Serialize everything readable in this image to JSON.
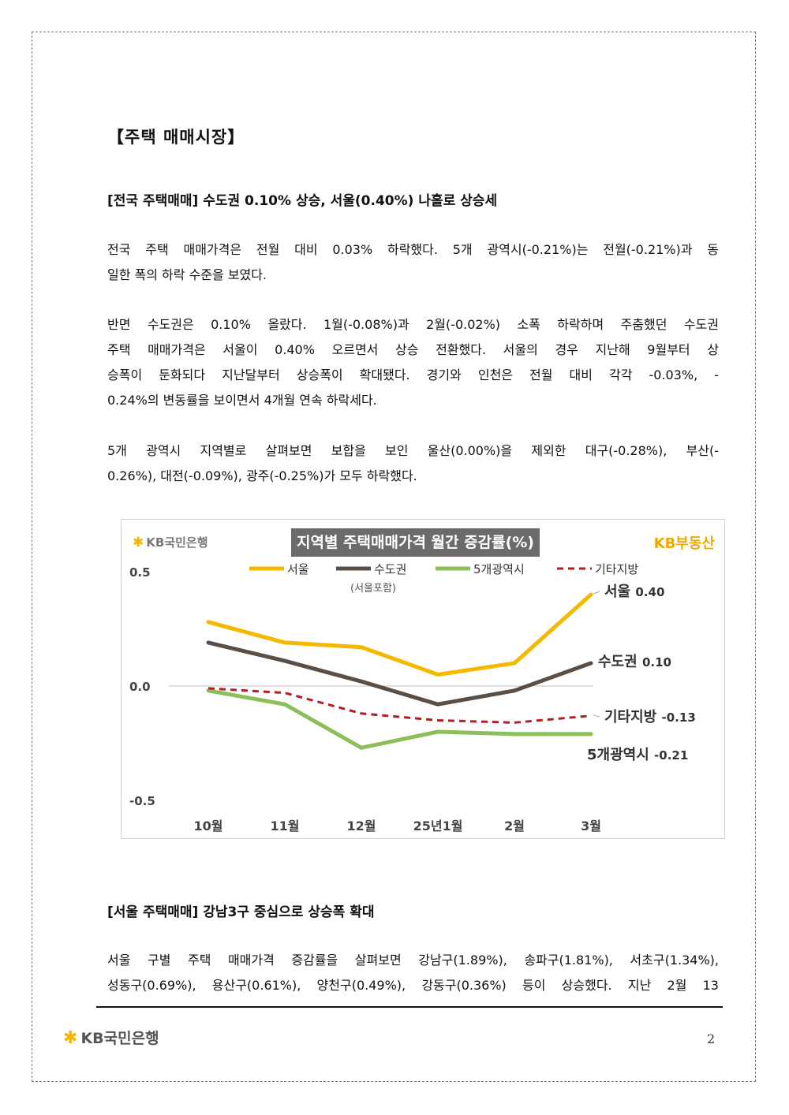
{
  "section_title": "【주택 매매시장】",
  "heading1": "[전국 주택매매] 수도권 0.10% 상승, 서울(0.40%) 나홀로 상승세",
  "para1": [
    "전국 주택 매매가격은 전월 대비 0.03% 하락했다. 5개 광역시(-0.21%)는 전월(-0.21%)과 동",
    "일한 폭의 하락 수준을 보였다."
  ],
  "para2": [
    "반면 수도권은 0.10% 올랐다. 1월(-0.08%)과 2월(-0.02%) 소폭 하락하며 주춤했던 수도권",
    "주택 매매가격은 서울이 0.40% 오르면서 상승 전환했다. 서울의 경우 지난해 9월부터 상",
    "승폭이 둔화되다 지난달부터 상승폭이 확대됐다. 경기와 인천은 전월 대비 각각 -0.03%, -",
    "0.24%의 변동률을 보이면서 4개월 연속 하락세다."
  ],
  "para3": [
    "5개 광역시 지역별로 살펴보면 보합을 보인 울산(0.00%)을 제외한 대구(-0.28%), 부산(-",
    "0.26%), 대전(-0.09%), 광주(-0.25%)가 모두 하락했다."
  ],
  "chart_logo_left": "KB국민은행",
  "chart_logo_right": "KB부동산",
  "chart_data": {
    "type": "line",
    "title": "지역별 주택매매가격 월간 증감률(%)",
    "categories": [
      "10월",
      "11월",
      "12월",
      "25년1월",
      "2월",
      "3월"
    ],
    "ylim": [
      -0.5,
      0.5
    ],
    "yticks": [
      "0.5",
      "0.0",
      "-0.5"
    ],
    "legend_note": "(서울포함)",
    "series": [
      {
        "name": "서울",
        "color": "#f5b800",
        "dashed": false,
        "values": [
          0.28,
          0.19,
          0.17,
          0.05,
          0.1,
          0.4
        ],
        "end_label": "서울",
        "end_value": "0.40"
      },
      {
        "name": "수도권",
        "color": "#5a4f47",
        "dashed": false,
        "values": [
          0.19,
          0.11,
          0.02,
          -0.08,
          -0.02,
          0.1
        ],
        "end_label": "수도권",
        "end_value": "0.10"
      },
      {
        "name": "5개광역시",
        "color": "#8cbf5a",
        "dashed": false,
        "values": [
          -0.02,
          -0.08,
          -0.27,
          -0.2,
          -0.21,
          -0.21
        ],
        "end_label": "5개광역시",
        "end_value": "-0.21"
      },
      {
        "name": "기타지방",
        "color": "#b51c22",
        "dashed": true,
        "values": [
          -0.01,
          -0.03,
          -0.12,
          -0.15,
          -0.16,
          -0.13
        ],
        "end_label": "기타지방",
        "end_value": "-0.13"
      }
    ]
  },
  "heading2": "[서울 주택매매] 강남3구 중심으로 상승폭 확대",
  "para4": [
    "서울 구별 주택 매매가격 증감률을 살펴보면 강남구(1.89%), 송파구(1.81%), 서초구(1.34%),",
    "성동구(0.69%), 용산구(0.61%), 양천구(0.49%), 강동구(0.36%) 등이 상승했다. 지난 2월 13"
  ],
  "footer_logo": "KB국민은행",
  "page_number": "2"
}
